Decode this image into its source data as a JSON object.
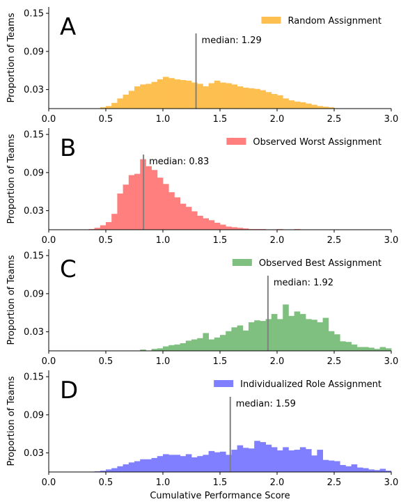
{
  "chart_data": [
    {
      "type": "bar",
      "panel_label": "A",
      "legend": "Random Assignment",
      "color": "#fdbf4f",
      "median_label": "median: 1.29",
      "median": 1.29,
      "ylabel": "Proportion of Teams",
      "xlim": [
        0,
        3
      ],
      "ylim": [
        0.0,
        0.16
      ],
      "yticks": [
        "0.03",
        "0.09",
        "0.15"
      ],
      "xticks": [
        "0.0",
        "0.5",
        "1.0",
        "1.5",
        "2.0",
        "2.5",
        "3.0"
      ],
      "bin_start": 0.0,
      "bin_width": 0.05,
      "values": [
        0,
        0,
        0,
        0,
        0,
        0,
        0,
        0,
        0,
        0.002,
        0.004,
        0.009,
        0.016,
        0.022,
        0.028,
        0.035,
        0.038,
        0.039,
        0.042,
        0.046,
        0.05,
        0.048,
        0.046,
        0.045,
        0.044,
        0.041,
        0.039,
        0.035,
        0.04,
        0.044,
        0.041,
        0.04,
        0.038,
        0.035,
        0.033,
        0.032,
        0.031,
        0.029,
        0.026,
        0.023,
        0.021,
        0.016,
        0.013,
        0.011,
        0.01,
        0.008,
        0.006,
        0.004,
        0.003,
        0.002,
        0,
        0,
        0,
        0,
        0,
        0,
        0,
        0,
        0,
        0
      ]
    },
    {
      "type": "bar",
      "panel_label": "B",
      "legend": "Observed Worst Assignment",
      "color": "#ff7f7f",
      "median_label": "median: 0.83",
      "median": 0.83,
      "ylabel": "Proportion of Teams",
      "xlim": [
        0,
        3
      ],
      "ylim": [
        0.0,
        0.16
      ],
      "yticks": [
        "0.03",
        "0.09",
        "0.15"
      ],
      "xticks": [
        "0.0",
        "0.5",
        "1.0",
        "1.5",
        "2.0",
        "2.5",
        "3.0"
      ],
      "bin_start": 0.0,
      "bin_width": 0.05,
      "values": [
        0,
        0,
        0,
        0,
        0,
        0,
        0,
        0.001,
        0.003,
        0.007,
        0.012,
        0.025,
        0.057,
        0.071,
        0.086,
        0.088,
        0.111,
        0.1,
        0.094,
        0.082,
        0.072,
        0.059,
        0.051,
        0.041,
        0.036,
        0.029,
        0.022,
        0.018,
        0.015,
        0.011,
        0.008,
        0.005,
        0.004,
        0.003,
        0.002,
        0.001,
        0.001,
        0.001,
        0,
        0,
        0.001,
        0,
        0,
        0.001,
        0,
        0,
        0,
        0,
        0,
        0,
        0,
        0,
        0,
        0,
        0,
        0,
        0,
        0,
        0,
        0
      ]
    },
    {
      "type": "bar",
      "panel_label": "C",
      "legend": "Observed Best Assignment",
      "color": "#7fbf7f",
      "median_label": "median: 1.92",
      "median": 1.92,
      "ylabel": "Proportion of Teams",
      "xlim": [
        0,
        3
      ],
      "ylim": [
        0.0,
        0.16
      ],
      "yticks": [
        "0.03",
        "0.09",
        "0.15"
      ],
      "xticks": [
        "0.0",
        "0.5",
        "1.0",
        "1.5",
        "2.0",
        "2.5",
        "3.0"
      ],
      "bin_start": 0.0,
      "bin_width": 0.05,
      "values": [
        0,
        0,
        0,
        0,
        0,
        0,
        0,
        0,
        0,
        0,
        0,
        0,
        0,
        0,
        0,
        0,
        0.002,
        0,
        0.003,
        0.004,
        0.007,
        0.009,
        0.01,
        0.012,
        0.016,
        0.018,
        0.02,
        0.028,
        0.018,
        0.021,
        0.025,
        0.031,
        0.037,
        0.04,
        0.032,
        0.045,
        0.048,
        0.047,
        0.05,
        0.058,
        0.05,
        0.073,
        0.055,
        0.062,
        0.058,
        0.05,
        0.049,
        0.045,
        0.052,
        0.031,
        0.026,
        0.015,
        0.014,
        0.01,
        0.006,
        0.006,
        0.005,
        0.003,
        0.006,
        0.004
      ]
    },
    {
      "type": "bar",
      "panel_label": "D",
      "legend": "Individualized Role Assignment",
      "color": "#7f7fff",
      "median_label": "median: 1.59",
      "median": 1.59,
      "ylabel": "Proportion of Teams",
      "xlim": [
        0,
        3
      ],
      "ylim": [
        0.0,
        0.16
      ],
      "yticks": [
        "0.03",
        "0.09",
        "0.15"
      ],
      "xticks": [
        "0.0",
        "0.5",
        "1.0",
        "1.5",
        "2.0",
        "2.5",
        "3.0"
      ],
      "xlabel": "Cumulative Performance Score",
      "bin_start": 0.0,
      "bin_width": 0.05,
      "values": [
        0,
        0,
        0,
        0,
        0,
        0,
        0,
        0,
        0.001,
        0.002,
        0.004,
        0.006,
        0.009,
        0.012,
        0.015,
        0.017,
        0.02,
        0.02,
        0.022,
        0.025,
        0.028,
        0.027,
        0.027,
        0.025,
        0.028,
        0.023,
        0.025,
        0.027,
        0.033,
        0.031,
        0.032,
        0.027,
        0.035,
        0.042,
        0.038,
        0.037,
        0.049,
        0.047,
        0.043,
        0.039,
        0.034,
        0.039,
        0.034,
        0.035,
        0.039,
        0.036,
        0.026,
        0.035,
        0.019,
        0.018,
        0.017,
        0.011,
        0.009,
        0.012,
        0.007,
        0.006,
        0.004,
        0.003,
        0.005,
        0.002
      ]
    }
  ]
}
